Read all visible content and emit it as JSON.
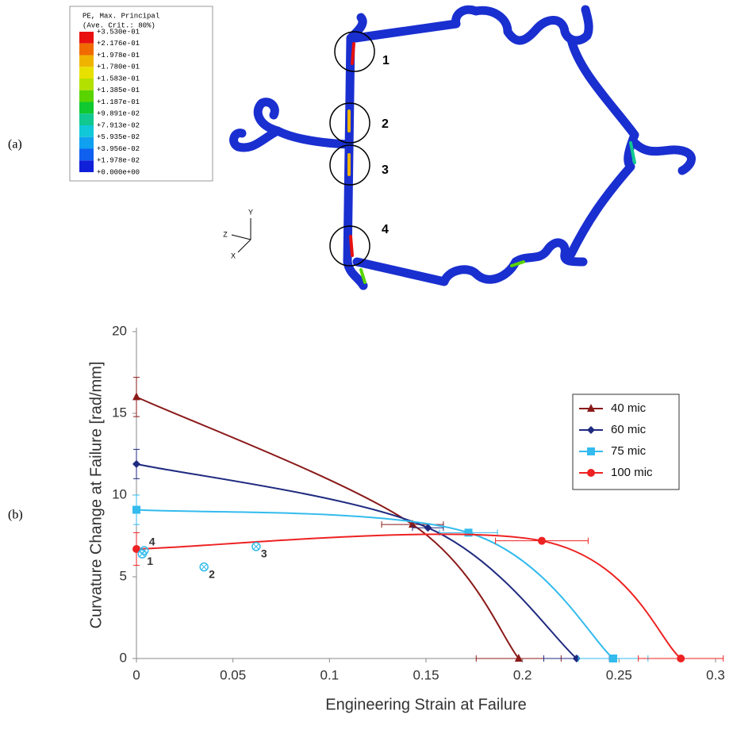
{
  "panel_a": {
    "label": "(a)",
    "legend_title": [
      "PE, Max. Principal",
      "(Ave. Crit.: 80%)"
    ],
    "legend_values": [
      "+3.530e-01",
      "+2.176e-01",
      "+1.978e-01",
      "+1.780e-01",
      "+1.583e-01",
      "+1.385e-01",
      "+1.187e-01",
      "+9.891e-02",
      "+7.913e-02",
      "+5.935e-02",
      "+3.956e-02",
      "+1.978e-02",
      "+0.000e+00"
    ],
    "legend_colors": [
      "#e81010",
      "#f06a00",
      "#f0b400",
      "#e8e000",
      "#b4e000",
      "#5ad400",
      "#10c830",
      "#10c890",
      "#10c8d8",
      "#10a0f0",
      "#1060f0",
      "#1020d8"
    ],
    "axes_triad": [
      "Y",
      "Z",
      "X"
    ],
    "regions": [
      "1",
      "2",
      "3",
      "4"
    ]
  },
  "chart_data": {
    "type": "line",
    "panel_label": "(b)",
    "x_label": "Engineering Strain at Failure",
    "y_label": "Curvature Change at Failure [rad/mm]",
    "xlim": [
      0,
      0.3
    ],
    "ylim": [
      0,
      20
    ],
    "xticks": [
      0,
      0.05,
      0.1,
      0.15,
      0.2,
      0.25,
      0.3
    ],
    "yticks": [
      0,
      5,
      10,
      15,
      20
    ],
    "series": [
      {
        "name": "40 mic",
        "color": "#8b1a1a",
        "marker": "triangle",
        "x": [
          0,
          0.143,
          0.198
        ],
        "values": [
          16,
          8.2,
          0
        ],
        "y_errors": [
          1.2,
          null,
          null
        ],
        "x_errors": [
          null,
          0.016,
          0.022
        ]
      },
      {
        "name": "60 mic",
        "color": "#1f2a80",
        "marker": "diamond",
        "x": [
          0,
          0.151,
          0.228
        ],
        "values": [
          11.9,
          8.0,
          0
        ],
        "y_errors": [
          0.9,
          null,
          null
        ],
        "x_errors": [
          null,
          0.008,
          0.017
        ]
      },
      {
        "name": "75 mic",
        "color": "#33bbee",
        "marker": "square",
        "x": [
          0,
          0.172,
          0.247
        ],
        "values": [
          9.1,
          7.7,
          0
        ],
        "y_errors": [
          0.9,
          null,
          null
        ],
        "x_errors": [
          null,
          0.015,
          0.018
        ]
      },
      {
        "name": "100 mic",
        "color": "#ee2222",
        "marker": "circle",
        "x": [
          0,
          0.21,
          0.282
        ],
        "values": [
          6.7,
          7.2,
          0
        ],
        "y_errors": [
          1.0,
          null,
          null
        ],
        "x_errors": [
          null,
          0.024,
          0.022
        ]
      }
    ],
    "points": {
      "color": "#33bbee",
      "labels": [
        "1",
        "2",
        "3",
        "4"
      ],
      "x": [
        0.003,
        0.035,
        0.062,
        0.004
      ],
      "values": [
        6.4,
        5.6,
        6.85,
        6.6
      ]
    }
  }
}
